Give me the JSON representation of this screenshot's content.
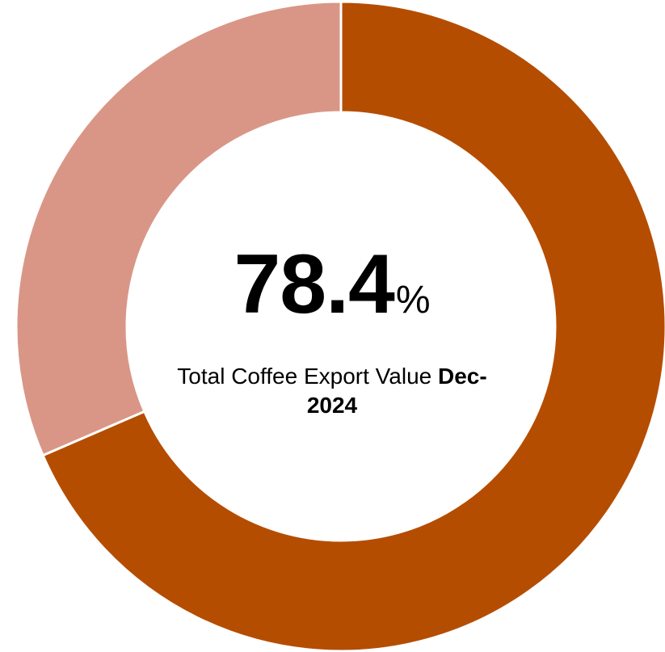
{
  "chart_data": {
    "type": "pie",
    "variant": "donut",
    "slices": [
      {
        "value": 68.5,
        "color": "#B54D00"
      },
      {
        "value": 31.5,
        "color": "#D99686"
      }
    ],
    "center_value": "78.4",
    "center_unit": "%",
    "center_caption": "Total Coffee Export Value",
    "center_caption_date": "Dec-2024"
  }
}
